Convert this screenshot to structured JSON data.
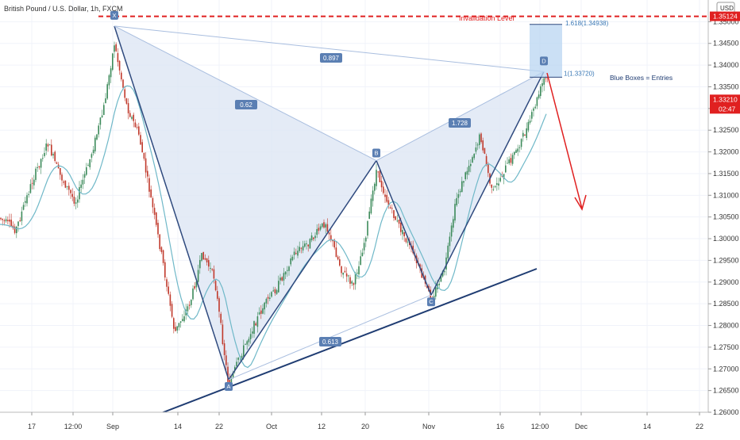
{
  "header": {
    "symbol_title": "British Pound / U.S. Dollar, 1h, FXCM",
    "currency": "USD"
  },
  "annotations": {
    "invalidation": "Invalidation Level",
    "entries_note": "Blue Boxes = Entries",
    "fib_top": "1.618(1.34938)",
    "fib_bottom": "1(1.33720)"
  },
  "colors": {
    "pattern_fill": "#dde6f4",
    "pattern_line": "#2f4a7e",
    "entry_box": "#b9d6f2",
    "invalidation": "#e02020",
    "moving_average": "#6fb8c8",
    "candle_up": "#3c8a5a",
    "candle_down": "#c0392b",
    "label_bg": "#5b7fb3"
  },
  "price_badges": {
    "invalidation_price": "1.35124",
    "last_price": "1.33210",
    "countdown": "02:47"
  },
  "chart_data": {
    "type": "line",
    "title": "British Pound / U.S. Dollar, 1h, FXCM",
    "xlabel": "",
    "ylabel": "",
    "x_ticks": [
      "17",
      "12:00",
      "Sep",
      "14",
      "22",
      "Oct",
      "12",
      "20",
      "Nov",
      "16",
      "12:00",
      "Dec",
      "14",
      "22"
    ],
    "ylim": [
      1.26,
      1.355
    ],
    "y_ticks": [
      "1.26000",
      "1.26500",
      "1.27000",
      "1.27500",
      "1.28000",
      "1.28500",
      "1.29000",
      "1.29500",
      "1.30000",
      "1.30500",
      "1.31000",
      "1.31500",
      "1.32000",
      "1.32500",
      "1.33000",
      "1.33500",
      "1.34000",
      "1.34500",
      "1.35000"
    ],
    "pattern_points": [
      {
        "name": "X",
        "price": 1.349
      },
      {
        "name": "A",
        "price": 1.2675
      },
      {
        "name": "B",
        "price": 1.318
      },
      {
        "name": "C",
        "price": 1.287
      },
      {
        "name": "D",
        "price": 1.3385
      }
    ],
    "ratios": [
      "0.62",
      "0.897",
      "1.728",
      "0.613"
    ],
    "invalidation_level": 1.35124,
    "entry_zone": [
      1.3372,
      1.34938
    ],
    "last_price": 1.3321,
    "grid": true
  }
}
